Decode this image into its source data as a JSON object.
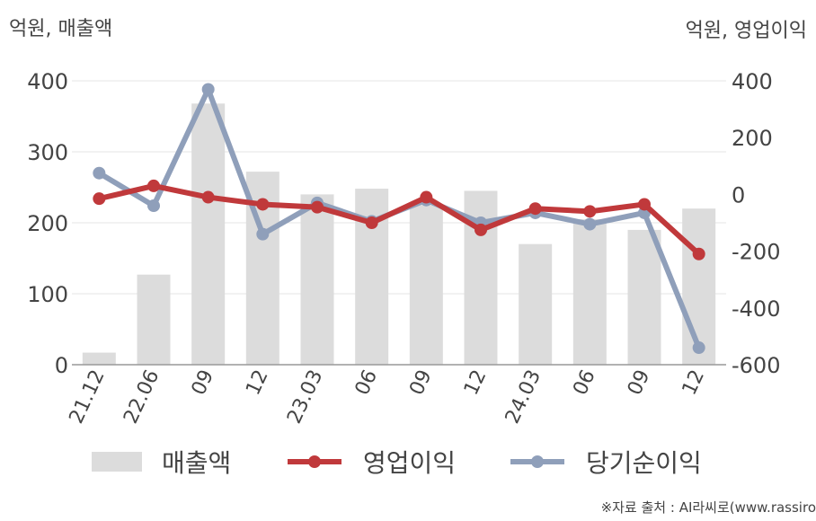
{
  "chart_data": {
    "type": "bar+line",
    "categories": [
      "21.12",
      "22.06",
      "09",
      "12",
      "23.03",
      "06",
      "09",
      "12",
      "24.03",
      "06",
      "09",
      "12"
    ],
    "left_axis": {
      "label": "억원, 매출액",
      "ticks": [
        0,
        100,
        200,
        300,
        400
      ],
      "ylim": [
        0,
        400
      ]
    },
    "right_axis": {
      "label": "억원, 영업이익",
      "ticks": [
        400,
        200,
        0,
        -200,
        -400,
        -600
      ],
      "ylim": [
        -600,
        400
      ]
    },
    "series": [
      {
        "name": "매출액",
        "type": "bar",
        "axis": "left",
        "color": "#dcdcdc",
        "values": [
          17,
          127,
          368,
          272,
          240,
          248,
          225,
          245,
          170,
          205,
          190,
          220
        ]
      },
      {
        "name": "영업이익",
        "type": "line",
        "axis": "right",
        "color": "#c0393b",
        "values": [
          -15,
          30,
          -10,
          -35,
          -45,
          -100,
          -10,
          -125,
          -50,
          -60,
          -35,
          -210
        ]
      },
      {
        "name": "당기순이익",
        "type": "line",
        "axis": "right",
        "color": "#8f9fba",
        "values": [
          75,
          -40,
          370,
          -140,
          -30,
          -95,
          -20,
          -100,
          -65,
          -105,
          -65,
          -540
        ]
      }
    ],
    "grid": true,
    "legend_position": "bottom"
  },
  "source_text": "※자료 출처 : AI라씨로(www.rassiro"
}
